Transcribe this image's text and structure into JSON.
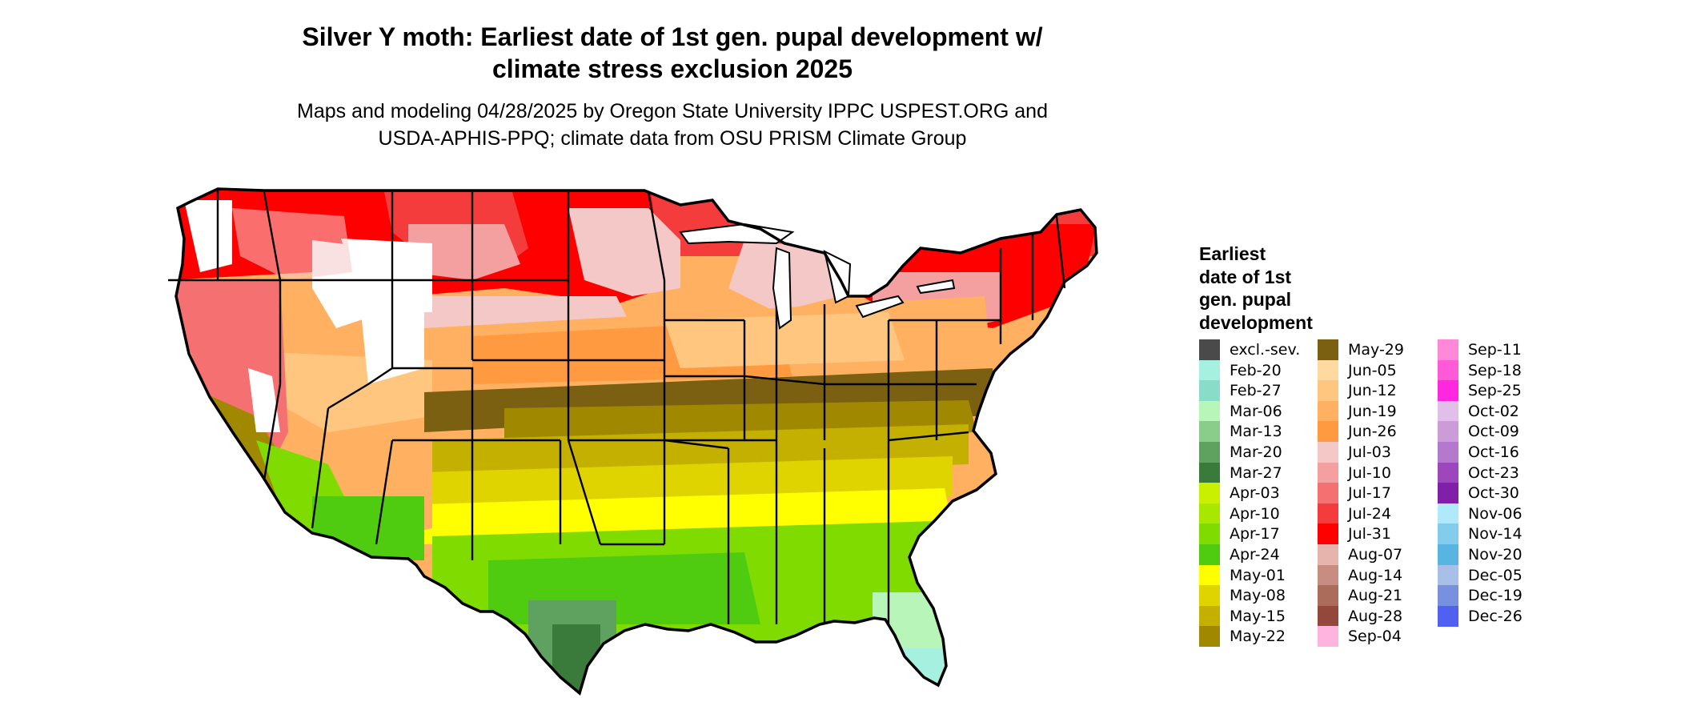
{
  "title_line1": "Silver Y moth: Earliest date of 1st gen. pupal development w/",
  "title_line2": "climate stress exclusion 2025",
  "subtitle_line1": "Maps and modeling 04/28/2025 by Oregon State University IPPC USPEST.ORG and",
  "subtitle_line2": "USDA-APHIS-PPQ; climate data from OSU PRISM Climate Group",
  "legend": {
    "title_line1": "Earliest",
    "title_line2": "date of 1st",
    "title_line3": "gen. pupal",
    "title_line4": "development",
    "items": [
      {
        "label": "excl.-sev.",
        "color": "#4a4a4a"
      },
      {
        "label": "Feb-20",
        "color": "#a6f0e0"
      },
      {
        "label": "Feb-27",
        "color": "#88dcc8"
      },
      {
        "label": "Mar-06",
        "color": "#b8f5b8"
      },
      {
        "label": "Mar-13",
        "color": "#8acc8a"
      },
      {
        "label": "Mar-20",
        "color": "#5fa15f"
      },
      {
        "label": "Mar-27",
        "color": "#3a7a3a"
      },
      {
        "label": "Apr-03",
        "color": "#c8f000"
      },
      {
        "label": "Apr-10",
        "color": "#a8e800"
      },
      {
        "label": "Apr-17",
        "color": "#80dc00"
      },
      {
        "label": "Apr-24",
        "color": "#50cc10"
      },
      {
        "label": "May-01",
        "color": "#ffff00"
      },
      {
        "label": "May-08",
        "color": "#e0d400"
      },
      {
        "label": "May-15",
        "color": "#c4b000"
      },
      {
        "label": "May-22",
        "color": "#a08800"
      },
      {
        "label": "May-29",
        "color": "#7a6010"
      },
      {
        "label": "Jun-05",
        "color": "#ffd9a0"
      },
      {
        "label": "Jun-12",
        "color": "#ffc680"
      },
      {
        "label": "Jun-19",
        "color": "#ffb060"
      },
      {
        "label": "Jun-26",
        "color": "#ff9a40"
      },
      {
        "label": "Jul-03",
        "color": "#f5c8c8"
      },
      {
        "label": "Jul-10",
        "color": "#f5a0a0"
      },
      {
        "label": "Jul-17",
        "color": "#f57070"
      },
      {
        "label": "Jul-24",
        "color": "#f53c3c"
      },
      {
        "label": "Jul-31",
        "color": "#ff0000"
      },
      {
        "label": "Aug-07",
        "color": "#e6b4ac"
      },
      {
        "label": "Aug-14",
        "color": "#c88c80"
      },
      {
        "label": "Aug-21",
        "color": "#ac6c5c"
      },
      {
        "label": "Aug-28",
        "color": "#94483c"
      },
      {
        "label": "Sep-04",
        "color": "#ffb4e0"
      },
      {
        "label": "Sep-11",
        "color": "#ff88d8"
      },
      {
        "label": "Sep-18",
        "color": "#ff5ad8"
      },
      {
        "label": "Sep-25",
        "color": "#ff28e0"
      },
      {
        "label": "Oct-02",
        "color": "#e0c0e8"
      },
      {
        "label": "Oct-09",
        "color": "#cc9cd8"
      },
      {
        "label": "Oct-16",
        "color": "#b478cc"
      },
      {
        "label": "Oct-23",
        "color": "#9c48bc"
      },
      {
        "label": "Oct-30",
        "color": "#8020a8"
      },
      {
        "label": "Nov-06",
        "color": "#b0e8fc"
      },
      {
        "label": "Nov-14",
        "color": "#84ccec"
      },
      {
        "label": "Nov-20",
        "color": "#58b4e0"
      },
      {
        "label": "Dec-05",
        "color": "#a8c0e8"
      },
      {
        "label": "Dec-19",
        "color": "#7890e0"
      },
      {
        "label": "Dec-26",
        "color": "#5060f0"
      }
    ]
  }
}
